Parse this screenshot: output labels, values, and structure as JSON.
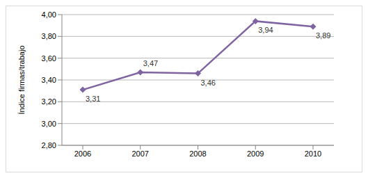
{
  "chart_data": {
    "type": "line",
    "y_label": "Índice firmas/trabajo",
    "categories": [
      "2006",
      "2007",
      "2008",
      "2009",
      "2010"
    ],
    "values": [
      3.31,
      3.47,
      3.46,
      3.94,
      3.89
    ],
    "value_labels": [
      "3,31",
      "3,47",
      "3,46",
      "3,94",
      "3,89"
    ],
    "color": "#8064a2",
    "marker": "diamond",
    "ylim": [
      2.8,
      4.0
    ],
    "yticks": [
      {
        "value": 2.8,
        "label": "2,80"
      },
      {
        "value": 3.0,
        "label": "3,00"
      },
      {
        "value": 3.2,
        "label": "3,20"
      },
      {
        "value": 3.4,
        "label": "3,40"
      },
      {
        "value": 3.6,
        "label": "3,60"
      },
      {
        "value": 3.8,
        "label": "3,80"
      },
      {
        "value": 4.0,
        "label": "4,00"
      }
    ],
    "grid": true,
    "data_labels": true
  }
}
